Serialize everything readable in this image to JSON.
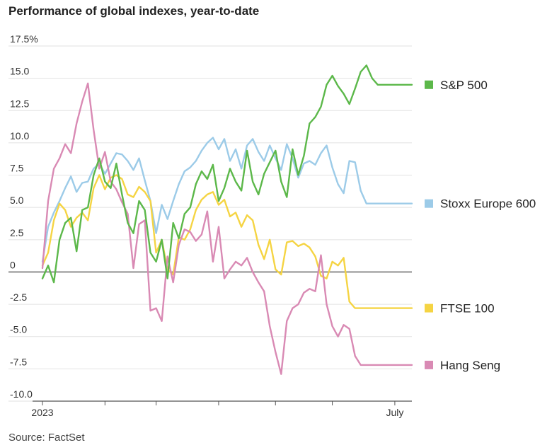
{
  "chart_data": {
    "type": "line",
    "title": "Performance of global indexes, year-to-date",
    "source": "Source: FactSet",
    "ylim": [
      -10,
      17.5
    ],
    "yticks": [
      17.5,
      15,
      12.5,
      10,
      7.5,
      5,
      2.5,
      0,
      -2.5,
      -5,
      -7.5,
      -10
    ],
    "ytick_labels": [
      "17.5%",
      "15.0",
      "12.5",
      "10.0",
      "7.5",
      "5.0",
      "2.5",
      "0",
      "-2.5",
      "-5.0",
      "-7.5",
      "-10.0"
    ],
    "xlim": [
      0,
      130
    ],
    "xtick_labels": [
      "2023",
      "July"
    ],
    "grid": true,
    "legend": "right",
    "series": [
      {
        "name": "S&P 500",
        "color": "#5cb84a",
        "x": [
          0,
          2,
          4,
          6,
          8,
          10,
          12,
          14,
          16,
          18,
          20,
          22,
          24,
          26,
          28,
          30,
          32,
          34,
          36,
          38,
          40,
          42,
          44,
          46,
          48,
          50,
          52,
          54,
          56,
          58,
          60,
          62,
          64,
          66,
          68,
          70,
          72,
          74,
          76,
          78,
          80,
          82,
          84,
          86,
          88,
          90,
          92,
          94,
          96,
          98,
          100,
          102,
          104,
          106,
          108,
          110,
          112,
          114,
          116,
          118,
          120,
          122,
          124,
          126,
          128,
          130
        ],
        "y": [
          -0.5,
          0.5,
          -0.8,
          2.5,
          3.8,
          4.2,
          1.6,
          4.8,
          5.0,
          7.5,
          8.8,
          7.0,
          6.5,
          8.4,
          6.0,
          3.8,
          3.0,
          5.5,
          4.8,
          1.5,
          0.8,
          2.5,
          -0.5,
          3.8,
          2.6,
          4.5,
          5.0,
          6.8,
          7.8,
          7.2,
          8.3,
          5.5,
          6.5,
          8.0,
          7.0,
          6.3,
          9.4,
          7.0,
          6.0,
          7.6,
          8.5,
          9.4,
          7.0,
          5.8,
          9.5,
          7.5,
          9.0,
          11.5,
          12.0,
          12.8,
          14.5,
          15.2,
          14.4,
          13.8,
          13.0,
          14.2,
          15.5,
          16.0,
          15.0,
          14.5,
          14.5,
          14.5,
          14.5,
          14.5,
          14.5,
          14.5
        ]
      },
      {
        "name": "Stoxx Europe 600",
        "color": "#9ccbe8",
        "x": [
          0,
          2,
          4,
          6,
          8,
          10,
          12,
          14,
          16,
          18,
          20,
          22,
          24,
          26,
          28,
          30,
          32,
          34,
          36,
          38,
          40,
          42,
          44,
          46,
          48,
          50,
          52,
          54,
          56,
          58,
          60,
          62,
          64,
          66,
          68,
          70,
          72,
          74,
          76,
          78,
          80,
          82,
          84,
          86,
          88,
          90,
          92,
          94,
          96,
          98,
          100,
          102,
          104,
          106,
          108,
          110,
          112,
          114,
          116,
          118,
          120,
          122,
          124,
          126,
          128,
          130
        ],
        "y": [
          0.8,
          3.5,
          4.6,
          5.5,
          6.5,
          7.4,
          6.2,
          6.9,
          7.0,
          8.0,
          8.4,
          7.6,
          8.4,
          9.2,
          9.1,
          8.6,
          7.9,
          8.8,
          7.1,
          5.5,
          3.0,
          5.2,
          4.1,
          5.5,
          6.8,
          7.8,
          8.1,
          8.6,
          9.4,
          10.0,
          10.4,
          9.5,
          10.3,
          8.6,
          9.5,
          8.0,
          9.8,
          10.3,
          9.3,
          8.6,
          9.8,
          8.8,
          7.9,
          9.9,
          8.8,
          7.3,
          8.4,
          8.6,
          8.3,
          9.2,
          9.8,
          8.1,
          6.8,
          6.1,
          8.6,
          8.5,
          6.3,
          5.3,
          5.3,
          5.3,
          5.3,
          5.3,
          5.3,
          5.3,
          5.3,
          5.3
        ]
      },
      {
        "name": "FTSE 100",
        "color": "#f5d443",
        "x": [
          0,
          2,
          4,
          6,
          8,
          10,
          12,
          14,
          16,
          18,
          20,
          22,
          24,
          26,
          28,
          30,
          32,
          34,
          36,
          38,
          40,
          42,
          44,
          46,
          48,
          50,
          52,
          54,
          56,
          58,
          60,
          62,
          64,
          66,
          68,
          70,
          72,
          74,
          76,
          78,
          80,
          82,
          84,
          86,
          88,
          90,
          92,
          94,
          96,
          98,
          100,
          102,
          104,
          106,
          108,
          110,
          112,
          114,
          116,
          118,
          120,
          122,
          124,
          126,
          128,
          130
        ],
        "y": [
          0.5,
          1.5,
          4.0,
          5.3,
          4.8,
          3.5,
          4.2,
          4.6,
          4.0,
          6.5,
          7.5,
          6.4,
          7.3,
          7.5,
          7.2,
          6.0,
          5.8,
          6.6,
          6.2,
          5.5,
          1.5,
          2.5,
          0.2,
          -0.2,
          2.7,
          2.5,
          3.3,
          4.8,
          5.6,
          6.0,
          6.2,
          5.2,
          5.6,
          4.3,
          4.6,
          3.5,
          4.4,
          4.0,
          2.1,
          1.0,
          2.5,
          0.2,
          -0.2,
          2.3,
          2.4,
          2.0,
          2.2,
          1.9,
          1.2,
          -0.3,
          -0.5,
          0.8,
          0.5,
          1.1,
          -2.3,
          -2.8,
          -2.8,
          -2.8,
          -2.8,
          -2.8,
          -2.8,
          -2.8,
          -2.8,
          -2.8,
          -2.8,
          -2.8
        ]
      },
      {
        "name": "Hang Seng",
        "color": "#d98ab4",
        "x": [
          0,
          2,
          4,
          6,
          8,
          10,
          12,
          14,
          16,
          18,
          20,
          22,
          24,
          26,
          28,
          30,
          32,
          34,
          36,
          38,
          40,
          42,
          44,
          46,
          48,
          50,
          52,
          54,
          56,
          58,
          60,
          62,
          64,
          66,
          68,
          70,
          72,
          74,
          76,
          78,
          80,
          82,
          84,
          86,
          88,
          90,
          92,
          94,
          96,
          98,
          100,
          102,
          104,
          106,
          108,
          110,
          112,
          114,
          116,
          118,
          120,
          122,
          124,
          126,
          128,
          130
        ],
        "y": [
          0.3,
          5.5,
          8.0,
          8.8,
          9.9,
          9.2,
          11.5,
          13.2,
          14.6,
          11.0,
          8.0,
          9.3,
          7.0,
          6.4,
          5.4,
          4.5,
          0.3,
          3.7,
          4.0,
          -3.0,
          -2.8,
          -3.8,
          1.2,
          -0.8,
          2.1,
          3.3,
          3.1,
          2.4,
          2.9,
          4.7,
          0.8,
          3.5,
          -0.5,
          0.2,
          0.8,
          0.5,
          1.1,
          0.0,
          -0.8,
          -1.5,
          -4.2,
          -6.2,
          -7.9,
          -3.8,
          -2.8,
          -2.5,
          -1.6,
          -1.3,
          -1.5,
          1.3,
          -2.5,
          -4.2,
          -5.0,
          -4.1,
          -4.4,
          -6.5,
          -7.2,
          -7.2,
          -7.2,
          -7.2,
          -7.2,
          -7.2,
          -7.2,
          -7.2,
          -7.2,
          -7.2
        ]
      }
    ]
  }
}
